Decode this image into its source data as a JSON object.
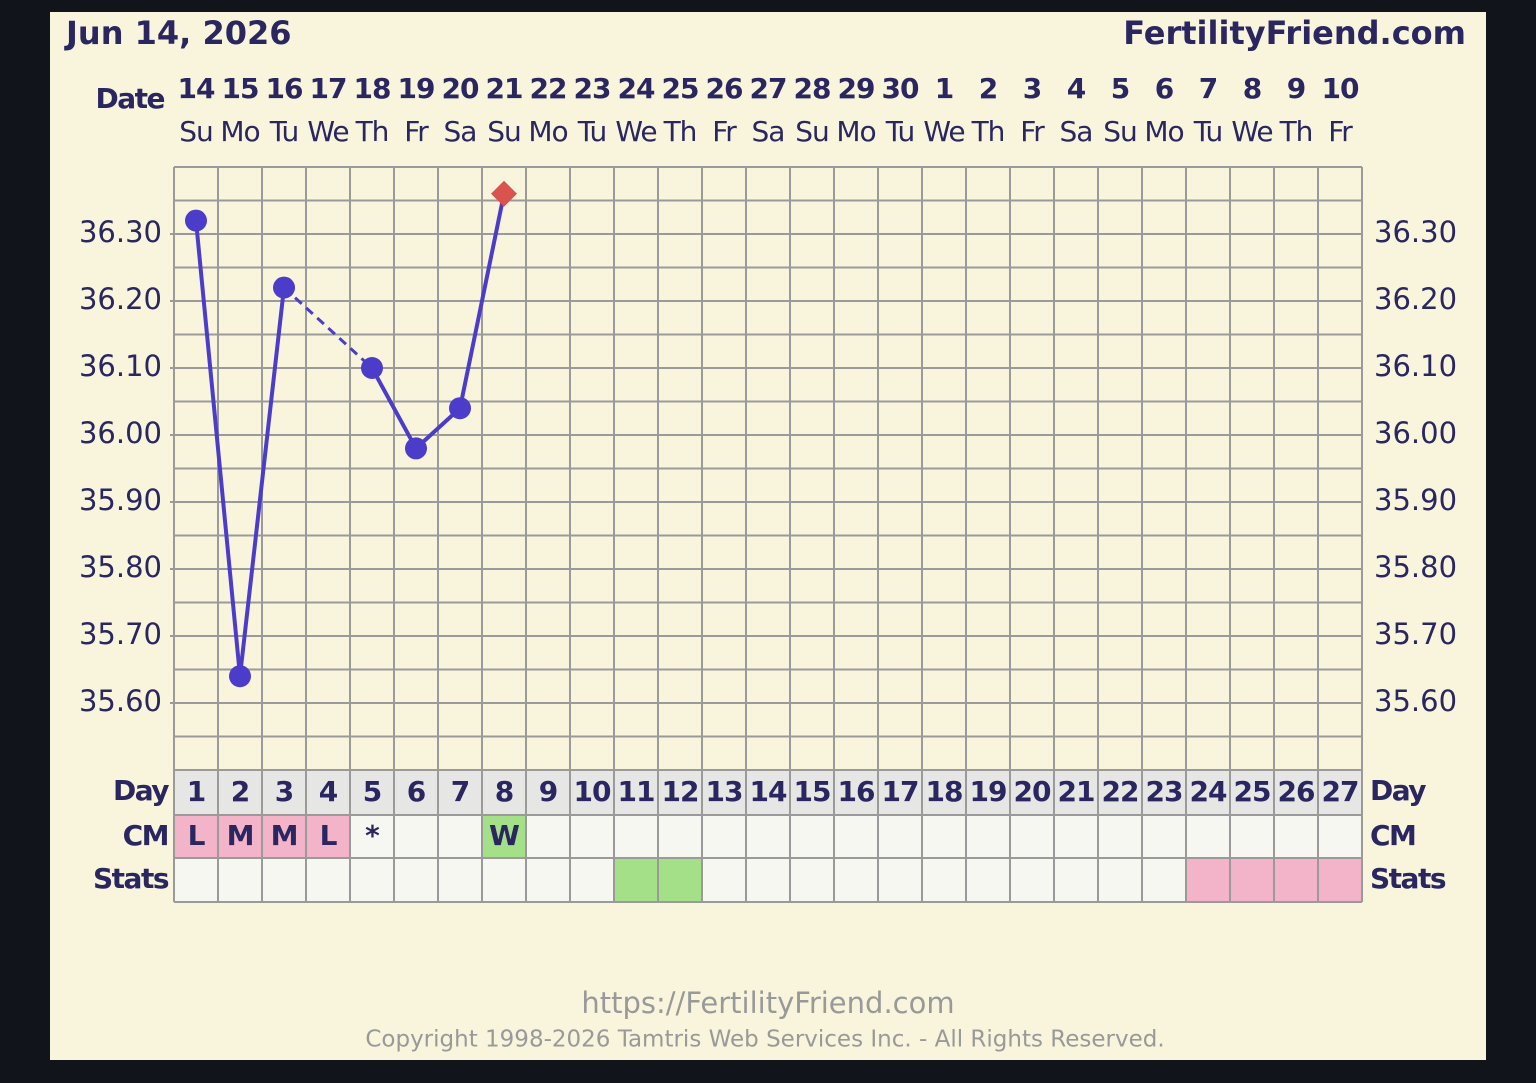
{
  "chart_data": {
    "type": "line",
    "date_text": "Jun 14, 2026",
    "site": "FertilityFriend.com",
    "date_label": "Date",
    "dates": [
      "14",
      "15",
      "16",
      "17",
      "18",
      "19",
      "20",
      "21",
      "22",
      "23",
      "24",
      "25",
      "26",
      "27",
      "28",
      "29",
      "30",
      "1",
      "2",
      "3",
      "4",
      "5",
      "6",
      "7",
      "8",
      "9",
      "10"
    ],
    "weekdays": [
      "Su",
      "Mo",
      "Tu",
      "We",
      "Th",
      "Fr",
      "Sa",
      "Su",
      "Mo",
      "Tu",
      "We",
      "Th",
      "Fr",
      "Sa",
      "Su",
      "Mo",
      "Tu",
      "We",
      "Th",
      "Fr",
      "Sa",
      "Su",
      "Mo",
      "Tu",
      "We",
      "Th",
      "Fr"
    ],
    "day_label": "Day",
    "categories": [
      "1",
      "2",
      "3",
      "4",
      "5",
      "6",
      "7",
      "8",
      "9",
      "10",
      "11",
      "12",
      "13",
      "14",
      "15",
      "16",
      "17",
      "18",
      "19",
      "20",
      "21",
      "22",
      "23",
      "24",
      "25",
      "26",
      "27"
    ],
    "values": [
      36.32,
      35.64,
      36.22,
      null,
      36.1,
      35.98,
      36.04,
      36.36,
      null,
      null,
      null,
      null,
      null,
      null,
      null,
      null,
      null,
      null,
      null,
      null,
      null,
      null,
      null,
      null,
      null,
      null,
      null
    ],
    "point_shapes": [
      "circle",
      "circle",
      "circle",
      null,
      "circle",
      "circle",
      "circle",
      "diamond",
      null,
      null,
      null,
      null,
      null,
      null,
      null,
      null,
      null,
      null,
      null,
      null,
      null,
      null,
      null,
      null,
      null,
      null,
      null
    ],
    "color": "#4b3dc9",
    "diamond_color": "#d9534f",
    "ylim": [
      35.5,
      36.4
    ],
    "yticks": [
      {
        "value": 35.6,
        "label": "35.60"
      },
      {
        "value": 35.7,
        "label": "35.70"
      },
      {
        "value": 35.8,
        "label": "35.80"
      },
      {
        "value": 35.9,
        "label": "35.90"
      },
      {
        "value": 36.0,
        "label": "36.00"
      },
      {
        "value": 36.1,
        "label": "36.10"
      },
      {
        "value": 36.2,
        "label": "36.20"
      },
      {
        "value": 36.3,
        "label": "36.30"
      }
    ],
    "grid_step": 0.05,
    "cm_label": "CM",
    "cm": [
      "L",
      "M",
      "M",
      "L",
      "*",
      null,
      null,
      "W",
      null,
      null,
      null,
      null,
      null,
      null,
      null,
      null,
      null,
      null,
      null,
      null,
      null,
      null,
      null,
      null,
      null,
      null,
      null
    ],
    "cm_colors": [
      "#f3b4c9",
      "#f3b4c9",
      "#f3b4c9",
      "#f3b4c9",
      null,
      null,
      null,
      "#a3e088",
      null,
      null,
      null,
      null,
      null,
      null,
      null,
      null,
      null,
      null,
      null,
      null,
      null,
      null,
      null,
      null,
      null,
      null,
      null
    ],
    "stats_label": "Stats",
    "stats_colors": [
      null,
      null,
      null,
      null,
      null,
      null,
      null,
      null,
      null,
      null,
      "#a3e088",
      "#a3e088",
      null,
      null,
      null,
      null,
      null,
      null,
      null,
      null,
      null,
      null,
      null,
      "#f3b4c9",
      "#f3b4c9",
      "#f3b4c9",
      "#f3b4c9"
    ],
    "footer_url": "https://FertilityFriend.com",
    "copyright": "Copyright 1998-2026 Tamtris Web Services Inc. - All Rights Reserved."
  }
}
